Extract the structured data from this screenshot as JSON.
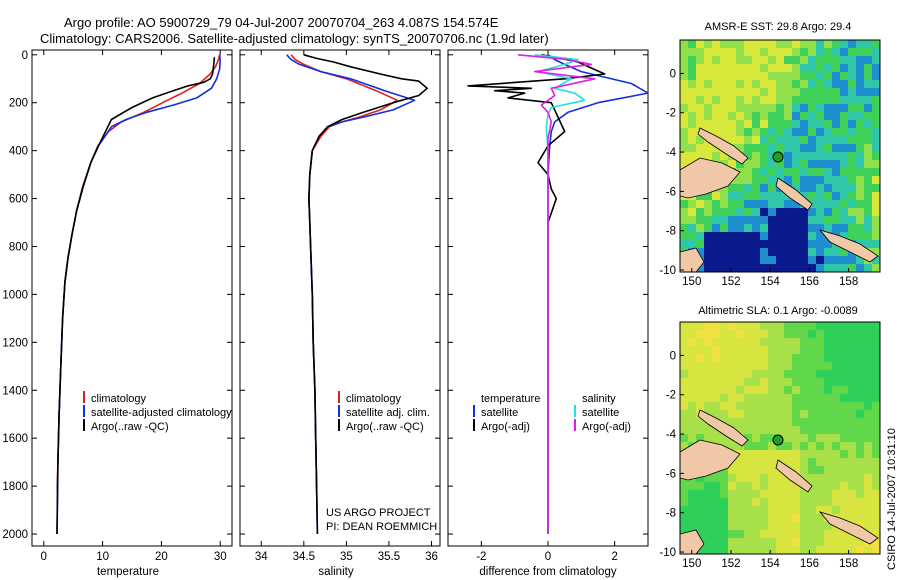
{
  "figure": {
    "title_line1": "Argo profile: AO 5900729_79 04-Jul-2007 20070704_263 4.087S 154.574E",
    "title_line2": "Climatology: CARS2006. Satellite-adjusted climatology: synTS_20070706.nc (1.9d later)",
    "side_note": "CSIRO 14-Jul-2007 10:31:10",
    "project_line1": "US ARGO PROJECT",
    "project_line2": "PI: DEAN ROEMMICH"
  },
  "colors": {
    "climatology": "#e02020",
    "satellite": "#1030e0",
    "argo": "#000000",
    "cyan": "#20e0e0",
    "magenta": "#e020e0"
  },
  "chart_data": [
    {
      "type": "line",
      "xlabel": "temperature",
      "ylabel": "",
      "xlim": [
        -2,
        32
      ],
      "ylim": [
        2050,
        -20
      ],
      "xticks": [
        "0",
        "10",
        "20",
        "30"
      ],
      "yticks": [
        "0",
        "200",
        "400",
        "600",
        "800",
        "1000",
        "1200",
        "1400",
        "1600",
        "1800",
        "2000"
      ],
      "legend": [
        "climatology",
        "satellite-adjusted climatology",
        "Argo(..raw -QC)"
      ],
      "series": [
        {
          "name": "climatology",
          "color": "climatology",
          "x": [
            29.9,
            29.7,
            29.2,
            28.3,
            26.5,
            23.5,
            21.0,
            17.0,
            13.2,
            11.0,
            9.2,
            8.0,
            6.6,
            5.6,
            4.8,
            4.1,
            3.6,
            3.2,
            2.9,
            2.6,
            2.4,
            2.3,
            2.3
          ],
          "y": [
            0,
            20,
            50,
            80,
            120,
            160,
            190,
            240,
            280,
            320,
            380,
            450,
            550,
            650,
            750,
            850,
            950,
            1100,
            1300,
            1500,
            1700,
            1800,
            1820
          ]
        },
        {
          "name": "satellite-adjusted climatology",
          "color": "satellite",
          "x": [
            29.9,
            30.0,
            29.9,
            29.4,
            28.5,
            26.0,
            22.0,
            17.5,
            14.0,
            11.5,
            9.3,
            8.0,
            6.7,
            5.6,
            4.8,
            4.1,
            3.6,
            3.2,
            2.9,
            2.6,
            2.4,
            2.3,
            2.25
          ],
          "y": [
            0,
            20,
            60,
            100,
            140,
            180,
            210,
            240,
            270,
            300,
            380,
            450,
            550,
            650,
            750,
            850,
            950,
            1100,
            1300,
            1500,
            1700,
            1900,
            2000
          ]
        },
        {
          "name": "Argo(..raw -QC)",
          "color": "argo",
          "x": [
            29.0,
            28.9,
            28.7,
            28.3,
            27.2,
            24.5,
            22.0,
            18.5,
            15.0,
            11.5,
            9.3,
            8.0,
            6.7,
            5.6,
            4.8,
            4.1,
            3.6,
            3.2,
            2.9,
            2.6,
            2.4,
            2.3,
            2.25
          ],
          "y": [
            10,
            40,
            80,
            100,
            115,
            130,
            150,
            180,
            220,
            270,
            380,
            450,
            550,
            650,
            750,
            850,
            950,
            1100,
            1300,
            1500,
            1700,
            1900,
            2000
          ]
        }
      ]
    },
    {
      "type": "line",
      "xlabel": "salinity",
      "ylabel": "",
      "xlim": [
        33.75,
        36.1
      ],
      "ylim": [
        2050,
        -20
      ],
      "xticks": [
        "34",
        "34.5",
        "35",
        "35.5",
        "36"
      ],
      "legend": [
        "climatology",
        "satellite adj. clim.",
        "Argo(..raw -QC)"
      ],
      "series": [
        {
          "name": "climatology",
          "color": "climatology",
          "x": [
            34.35,
            34.4,
            34.5,
            34.7,
            35.0,
            35.35,
            35.6,
            35.4,
            35.15,
            34.95,
            34.8,
            34.7,
            34.6,
            34.57,
            34.56,
            34.57,
            34.58,
            34.6,
            34.61,
            34.63,
            34.64,
            34.65,
            34.65
          ],
          "y": [
            0,
            20,
            40,
            70,
            100,
            150,
            190,
            230,
            260,
            280,
            300,
            340,
            400,
            500,
            600,
            700,
            800,
            1000,
            1200,
            1400,
            1600,
            1800,
            1820
          ]
        },
        {
          "name": "satellite adj. clim.",
          "color": "satellite",
          "x": [
            34.3,
            34.35,
            34.45,
            34.7,
            35.05,
            35.45,
            35.8,
            35.55,
            35.2,
            34.95,
            34.78,
            34.68,
            34.6,
            34.57,
            34.56,
            34.57,
            34.58,
            34.6,
            34.61,
            34.63,
            34.64,
            34.65,
            34.66
          ],
          "y": [
            0,
            20,
            40,
            70,
            100,
            150,
            190,
            230,
            260,
            280,
            300,
            340,
            400,
            500,
            600,
            700,
            800,
            1000,
            1200,
            1400,
            1600,
            1800,
            2000
          ]
        },
        {
          "name": "Argo(..raw -QC)",
          "color": "argo",
          "x": [
            34.5,
            34.65,
            34.85,
            35.05,
            35.4,
            35.65,
            35.85,
            35.95,
            35.85,
            35.55,
            35.2,
            34.95,
            34.78,
            34.68,
            34.6,
            34.57,
            34.56,
            34.57,
            34.58,
            34.6,
            34.61,
            34.63,
            34.64,
            34.65,
            34.66
          ],
          "y": [
            0,
            15,
            30,
            50,
            80,
            100,
            110,
            140,
            170,
            200,
            240,
            270,
            300,
            340,
            400,
            500,
            600,
            700,
            800,
            1000,
            1200,
            1400,
            1600,
            1800,
            2000
          ]
        }
      ]
    },
    {
      "type": "line",
      "xlabel": "difference from climatology",
      "ylabel": "",
      "xlim": [
        -3,
        3
      ],
      "ylim": [
        2050,
        -20
      ],
      "xticks": [
        "-2",
        "0",
        "2"
      ],
      "legend_left": [
        "temperature",
        "satellite",
        "Argo(-adj)"
      ],
      "legend_right": [
        "salinity",
        "satellite",
        "Argo(-adj)"
      ],
      "series": [
        {
          "name": "temperature satellite",
          "color": "satellite",
          "x": [
            0.0,
            0.2,
            0.5,
            1.0,
            2.5,
            3.0,
            1.5,
            0.6,
            0.2,
            0.1,
            0.05,
            0.0,
            0.0,
            0.0,
            0.0,
            0.0,
            0.0,
            0.0
          ],
          "y": [
            0,
            20,
            40,
            70,
            120,
            160,
            200,
            240,
            280,
            320,
            380,
            500,
            700,
            1000,
            1300,
            1600,
            1800,
            2000
          ]
        },
        {
          "name": "temperature Argo(-adj)",
          "color": "argo",
          "x": [
            -0.2,
            0.2,
            0.9,
            1.7,
            0.5,
            -2.4,
            -0.5,
            -1.6,
            -0.7,
            -1.2,
            0.1,
            0.5,
            0.0,
            -0.3,
            0.0,
            0.1,
            0.25,
            0.0,
            0.0,
            0.0,
            0.0,
            0.0
          ],
          "y": [
            0,
            10,
            30,
            80,
            100,
            130,
            140,
            150,
            160,
            180,
            200,
            320,
            380,
            450,
            500,
            560,
            600,
            700,
            900,
            1200,
            1600,
            2000
          ]
        },
        {
          "name": "salinity satellite",
          "color": "cyan",
          "x": [
            -0.4,
            0.9,
            0.5,
            -0.3,
            0.7,
            0.2,
            0.8,
            1.1,
            0.1,
            0.0,
            -0.05,
            0.0,
            0.0,
            0.0,
            0.0,
            0.0,
            0.0,
            0.0
          ],
          "y": [
            0,
            20,
            40,
            70,
            100,
            140,
            160,
            190,
            220,
            250,
            300,
            400,
            600,
            900,
            1200,
            1500,
            1800,
            2000
          ]
        },
        {
          "name": "salinity Argo(-adj)",
          "color": "magenta",
          "x": [
            -0.9,
            0.6,
            1.3,
            -0.4,
            1.4,
            0.1,
            0.2,
            -0.2,
            0.0,
            0.1,
            0.0,
            0.0,
            0.0,
            0.0,
            0.0
          ],
          "y": [
            0,
            20,
            40,
            70,
            100,
            140,
            170,
            210,
            240,
            280,
            350,
            500,
            800,
            1200,
            2000
          ]
        }
      ]
    },
    {
      "type": "heatmap",
      "title": "AMSR-E SST: 29.8 Argo: 29.4",
      "xlim": [
        149.4,
        159.6
      ],
      "ylim": [
        -10.1,
        1.7
      ],
      "xticks": [
        "150",
        "152",
        "154",
        "156",
        "158"
      ],
      "yticks": [
        "0",
        "-2",
        "-4",
        "-6",
        "-8",
        "-10"
      ],
      "argo_position": {
        "lon": 154.574,
        "lat": -4.087
      }
    },
    {
      "type": "heatmap",
      "title": "Altimetric SLA: 0.1 Argo: -0.0089",
      "xlim": [
        149.4,
        159.6
      ],
      "ylim": [
        -10.1,
        1.7
      ],
      "xticks": [
        "150",
        "152",
        "154",
        "156",
        "158"
      ],
      "yticks": [
        "0",
        "-2",
        "-4",
        "-6",
        "-8",
        "-10"
      ],
      "argo_position": {
        "lon": 154.574,
        "lat": -4.087
      }
    }
  ]
}
